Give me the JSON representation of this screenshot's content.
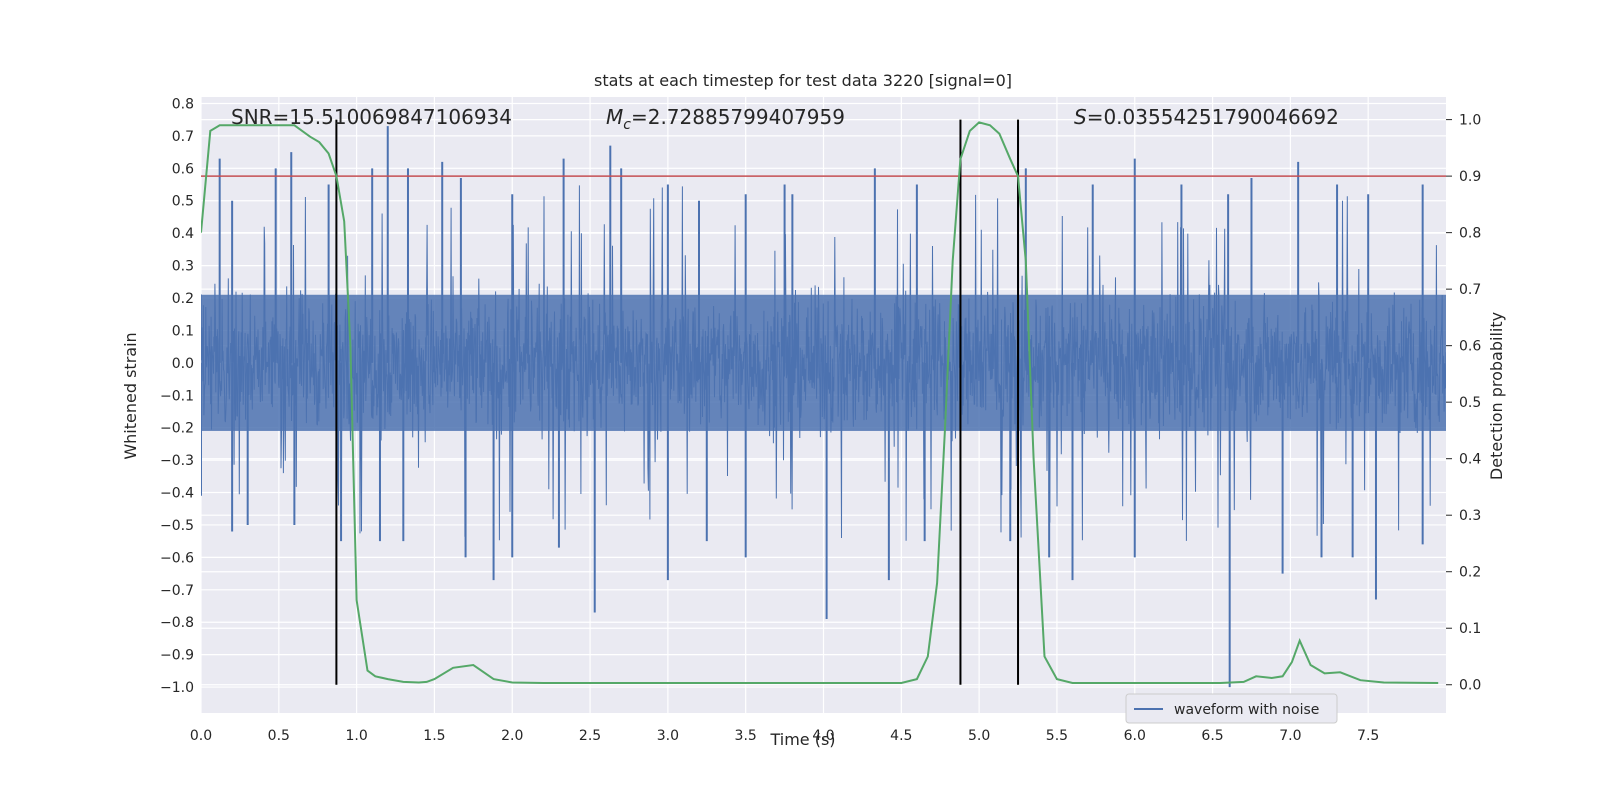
{
  "chart_data": {
    "type": "line",
    "title": "stats at each timestep for test data 3220 [signal=0]",
    "xlabel": "Time (s)",
    "ylabel": "Whitened strain",
    "ylabel_right": "Detection probability",
    "xlim": [
      0.0,
      8.0
    ],
    "ylim": [
      -1.08,
      0.82
    ],
    "ylim_right": [
      -0.05,
      1.04
    ],
    "x_ticks": [
      0.0,
      0.5,
      1.0,
      1.5,
      2.0,
      2.5,
      3.0,
      3.5,
      4.0,
      4.5,
      5.0,
      5.5,
      6.0,
      6.5,
      7.0,
      7.5
    ],
    "x_tick_labels": [
      "0.0",
      "0.5",
      "1.0",
      "1.5",
      "2.0",
      "2.5",
      "3.0",
      "3.5",
      "4.0",
      "4.5",
      "5.0",
      "5.5",
      "6.0",
      "6.5",
      "7.0",
      "7.5"
    ],
    "y_ticks": [
      0.8,
      0.7,
      0.6,
      0.5,
      0.4,
      0.3,
      0.2,
      0.1,
      0.0,
      -0.1,
      -0.2,
      -0.3,
      -0.4,
      -0.5,
      -0.6,
      -0.7,
      -0.8,
      -0.9,
      -1.0
    ],
    "y_tick_labels": [
      "0.8",
      "0.7",
      "0.6",
      "0.5",
      "0.4",
      "0.3",
      "0.2",
      "0.1",
      "0.0",
      "−0.1",
      "−0.2",
      "−0.3",
      "−0.4",
      "−0.5",
      "−0.6",
      "−0.7",
      "−0.8",
      "−0.9",
      "−1.0"
    ],
    "y_right_ticks": [
      1.0,
      0.9,
      0.8,
      0.7,
      0.6,
      0.5,
      0.4,
      0.3,
      0.2,
      0.1,
      0.0
    ],
    "y_right_tick_labels": [
      "1.0",
      "0.9",
      "0.8",
      "0.7",
      "0.6",
      "0.5",
      "0.4",
      "0.3",
      "0.2",
      "0.1",
      "0.0"
    ],
    "grid": true,
    "legend": {
      "position": "lower-right",
      "entries": [
        "waveform with noise"
      ]
    },
    "annotations": {
      "snr": "SNR=15.510069847106934",
      "mc_symbol": "M",
      "mc_sub": "c",
      "mc_value": "=2.72885799407959",
      "s_symbol": "S",
      "s_value": "=0.03554251790046692"
    },
    "colors": {
      "waveform": "#4c72b0",
      "probability": "#55a868",
      "threshold": "#c44e52",
      "markers": "#000000",
      "panel": "#eaeaf2",
      "grid": "#ffffff"
    },
    "threshold_probability": 0.9,
    "vertical_markers_s": [
      0.87,
      4.88,
      5.25
    ],
    "waveform": {
      "name": "waveform with noise",
      "sample_rate_hz": 2048,
      "duration_s": 8.0,
      "typical_envelope": [
        -0.3,
        0.3
      ],
      "upper_spikes": [
        [
          0.12,
          0.63
        ],
        [
          0.2,
          0.5
        ],
        [
          0.48,
          0.6
        ],
        [
          0.58,
          0.65
        ],
        [
          0.82,
          0.55
        ],
        [
          1.1,
          0.6
        ],
        [
          1.2,
          0.73
        ],
        [
          1.33,
          0.6
        ],
        [
          1.55,
          0.62
        ],
        [
          1.67,
          0.57
        ],
        [
          2.0,
          0.52
        ],
        [
          2.33,
          0.63
        ],
        [
          2.63,
          0.67
        ],
        [
          2.7,
          0.6
        ],
        [
          3.0,
          0.55
        ],
        [
          3.2,
          0.5
        ],
        [
          3.5,
          0.52
        ],
        [
          3.75,
          0.55
        ],
        [
          3.8,
          0.52
        ],
        [
          4.33,
          0.6
        ],
        [
          4.6,
          0.55
        ],
        [
          5.25,
          0.73
        ],
        [
          5.3,
          0.6
        ],
        [
          5.73,
          0.55
        ],
        [
          6.0,
          0.63
        ],
        [
          6.3,
          0.55
        ],
        [
          6.6,
          0.52
        ],
        [
          6.75,
          0.57
        ],
        [
          7.05,
          0.62
        ],
        [
          7.3,
          0.55
        ],
        [
          7.5,
          0.52
        ],
        [
          7.85,
          0.55
        ]
      ],
      "lower_spikes": [
        [
          0.0,
          -0.41
        ],
        [
          0.2,
          -0.52
        ],
        [
          0.3,
          -0.5
        ],
        [
          0.6,
          -0.5
        ],
        [
          0.9,
          -0.55
        ],
        [
          1.15,
          -0.55
        ],
        [
          1.3,
          -0.55
        ],
        [
          1.7,
          -0.6
        ],
        [
          1.88,
          -0.67
        ],
        [
          2.0,
          -0.6
        ],
        [
          2.3,
          -0.57
        ],
        [
          2.53,
          -0.77
        ],
        [
          3.0,
          -0.67
        ],
        [
          3.25,
          -0.55
        ],
        [
          3.5,
          -0.6
        ],
        [
          4.02,
          -0.79
        ],
        [
          4.42,
          -0.67
        ],
        [
          4.65,
          -0.55
        ],
        [
          5.2,
          -0.55
        ],
        [
          5.45,
          -0.6
        ],
        [
          5.6,
          -0.67
        ],
        [
          6.0,
          -0.6
        ],
        [
          6.61,
          -1.0
        ],
        [
          6.95,
          -0.65
        ],
        [
          7.2,
          -0.6
        ],
        [
          7.4,
          -0.6
        ],
        [
          7.55,
          -0.73
        ],
        [
          7.85,
          -0.56
        ]
      ]
    },
    "probability": {
      "x": [
        0.0,
        0.06,
        0.12,
        0.2,
        0.35,
        0.5,
        0.6,
        0.7,
        0.76,
        0.82,
        0.87,
        0.92,
        0.96,
        1.0,
        1.07,
        1.12,
        1.2,
        1.3,
        1.4,
        1.45,
        1.5,
        1.62,
        1.75,
        1.88,
        2.0,
        2.2,
        2.5,
        3.0,
        3.2,
        3.5,
        4.0,
        4.5,
        4.6,
        4.67,
        4.73,
        4.78,
        4.83,
        4.88,
        4.94,
        5.0,
        5.07,
        5.13,
        5.2,
        5.25,
        5.3,
        5.35,
        5.42,
        5.5,
        5.6,
        5.8,
        6.0,
        6.3,
        6.55,
        6.7,
        6.78,
        6.88,
        6.95,
        7.01,
        7.06,
        7.13,
        7.22,
        7.32,
        7.45,
        7.6,
        7.95
      ],
      "y": [
        0.8,
        0.98,
        0.99,
        0.99,
        0.99,
        0.99,
        0.99,
        0.97,
        0.96,
        0.94,
        0.9,
        0.82,
        0.6,
        0.15,
        0.025,
        0.015,
        0.01,
        0.005,
        0.004,
        0.005,
        0.01,
        0.03,
        0.035,
        0.01,
        0.004,
        0.003,
        0.003,
        0.003,
        0.003,
        0.003,
        0.003,
        0.003,
        0.01,
        0.05,
        0.18,
        0.45,
        0.75,
        0.93,
        0.98,
        0.995,
        0.99,
        0.975,
        0.93,
        0.9,
        0.75,
        0.4,
        0.05,
        0.01,
        0.003,
        0.003,
        0.003,
        0.003,
        0.003,
        0.005,
        0.015,
        0.012,
        0.015,
        0.04,
        0.078,
        0.035,
        0.02,
        0.022,
        0.008,
        0.004,
        0.003
      ]
    }
  }
}
